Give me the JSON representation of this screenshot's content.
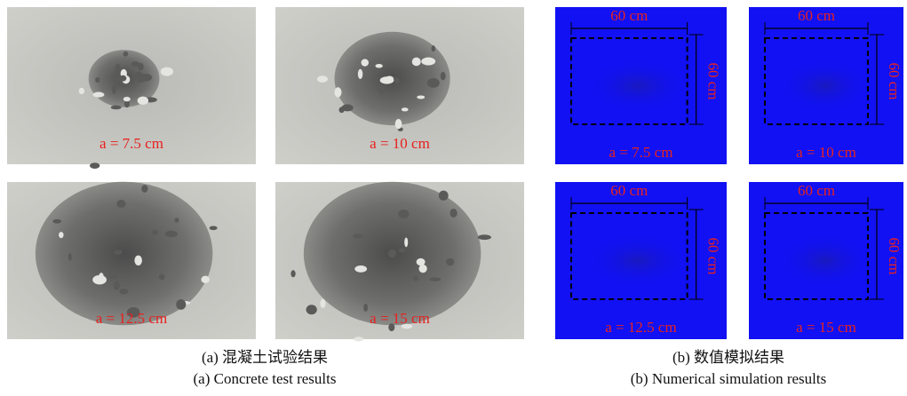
{
  "panels": [
    {
      "caption_zh": "(a) 混凝土试验结果",
      "caption_en": "(a) Concrete test results",
      "images": [
        {
          "label": "a = 7.5 cm"
        },
        {
          "label": "a = 10 cm"
        },
        {
          "label": "a = 12.5 cm"
        },
        {
          "label": "a = 15 cm"
        }
      ]
    },
    {
      "caption_zh": "(b) 数值模拟结果",
      "caption_en": "(b) Numerical simulation results",
      "images": [
        {
          "label": "a = 7.5 cm",
          "width_label": "60 cm",
          "height_label": "60 cm"
        },
        {
          "label": "a = 10 cm",
          "width_label": "60 cm",
          "height_label": "60 cm"
        },
        {
          "label": "a = 12.5 cm",
          "width_label": "60 cm",
          "height_label": "60 cm"
        },
        {
          "label": "a = 15 cm",
          "width_label": "60 cm",
          "height_label": "60 cm"
        }
      ]
    }
  ]
}
